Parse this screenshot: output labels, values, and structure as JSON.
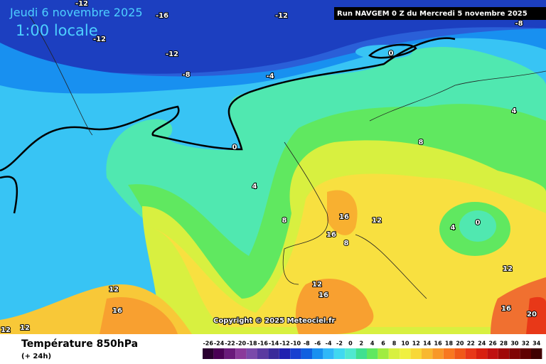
{
  "header": {
    "date": "Jeudi 6 novembre 2025",
    "time": "1:00 locale",
    "run": "Run NAVGEM 0 Z du Mercredi 5 novembre 2025",
    "copyright": "Copyright © 2025 Meteociel.fr"
  },
  "footer": {
    "title": "Température 850hPa",
    "lead": "(+ 24h)"
  },
  "contour_labels": [
    -12,
    -16,
    -12,
    -12,
    -12,
    -8,
    -8,
    -4,
    0,
    0,
    4,
    4,
    8,
    8,
    12,
    12,
    12,
    12,
    16,
    16,
    16,
    16,
    16,
    20,
    12,
    12,
    4,
    0,
    8
  ],
  "legend": {
    "ticks": [
      -26,
      -24,
      -22,
      -20,
      -18,
      -16,
      -14,
      -12,
      -10,
      -8,
      -6,
      -4,
      -2,
      0,
      2,
      4,
      6,
      8,
      10,
      12,
      14,
      16,
      18,
      20,
      22,
      24,
      26,
      28,
      30,
      32,
      34
    ],
    "colors": [
      "#2a0030",
      "#4a0055",
      "#6a1a7a",
      "#8a3a9a",
      "#7a4aaa",
      "#5a3aa0",
      "#3a2a9a",
      "#2020b0",
      "#1840d0",
      "#1060e0",
      "#1890f0",
      "#30b8f8",
      "#40d8f0",
      "#50e8d0",
      "#40e090",
      "#60e860",
      "#a0ec40",
      "#d8f040",
      "#f0f040",
      "#f8d838",
      "#f8b830",
      "#f89828",
      "#f87820",
      "#f05818",
      "#e83818",
      "#d82010",
      "#c01010",
      "#a00808",
      "#800404",
      "#600000",
      "#400000"
    ]
  }
}
